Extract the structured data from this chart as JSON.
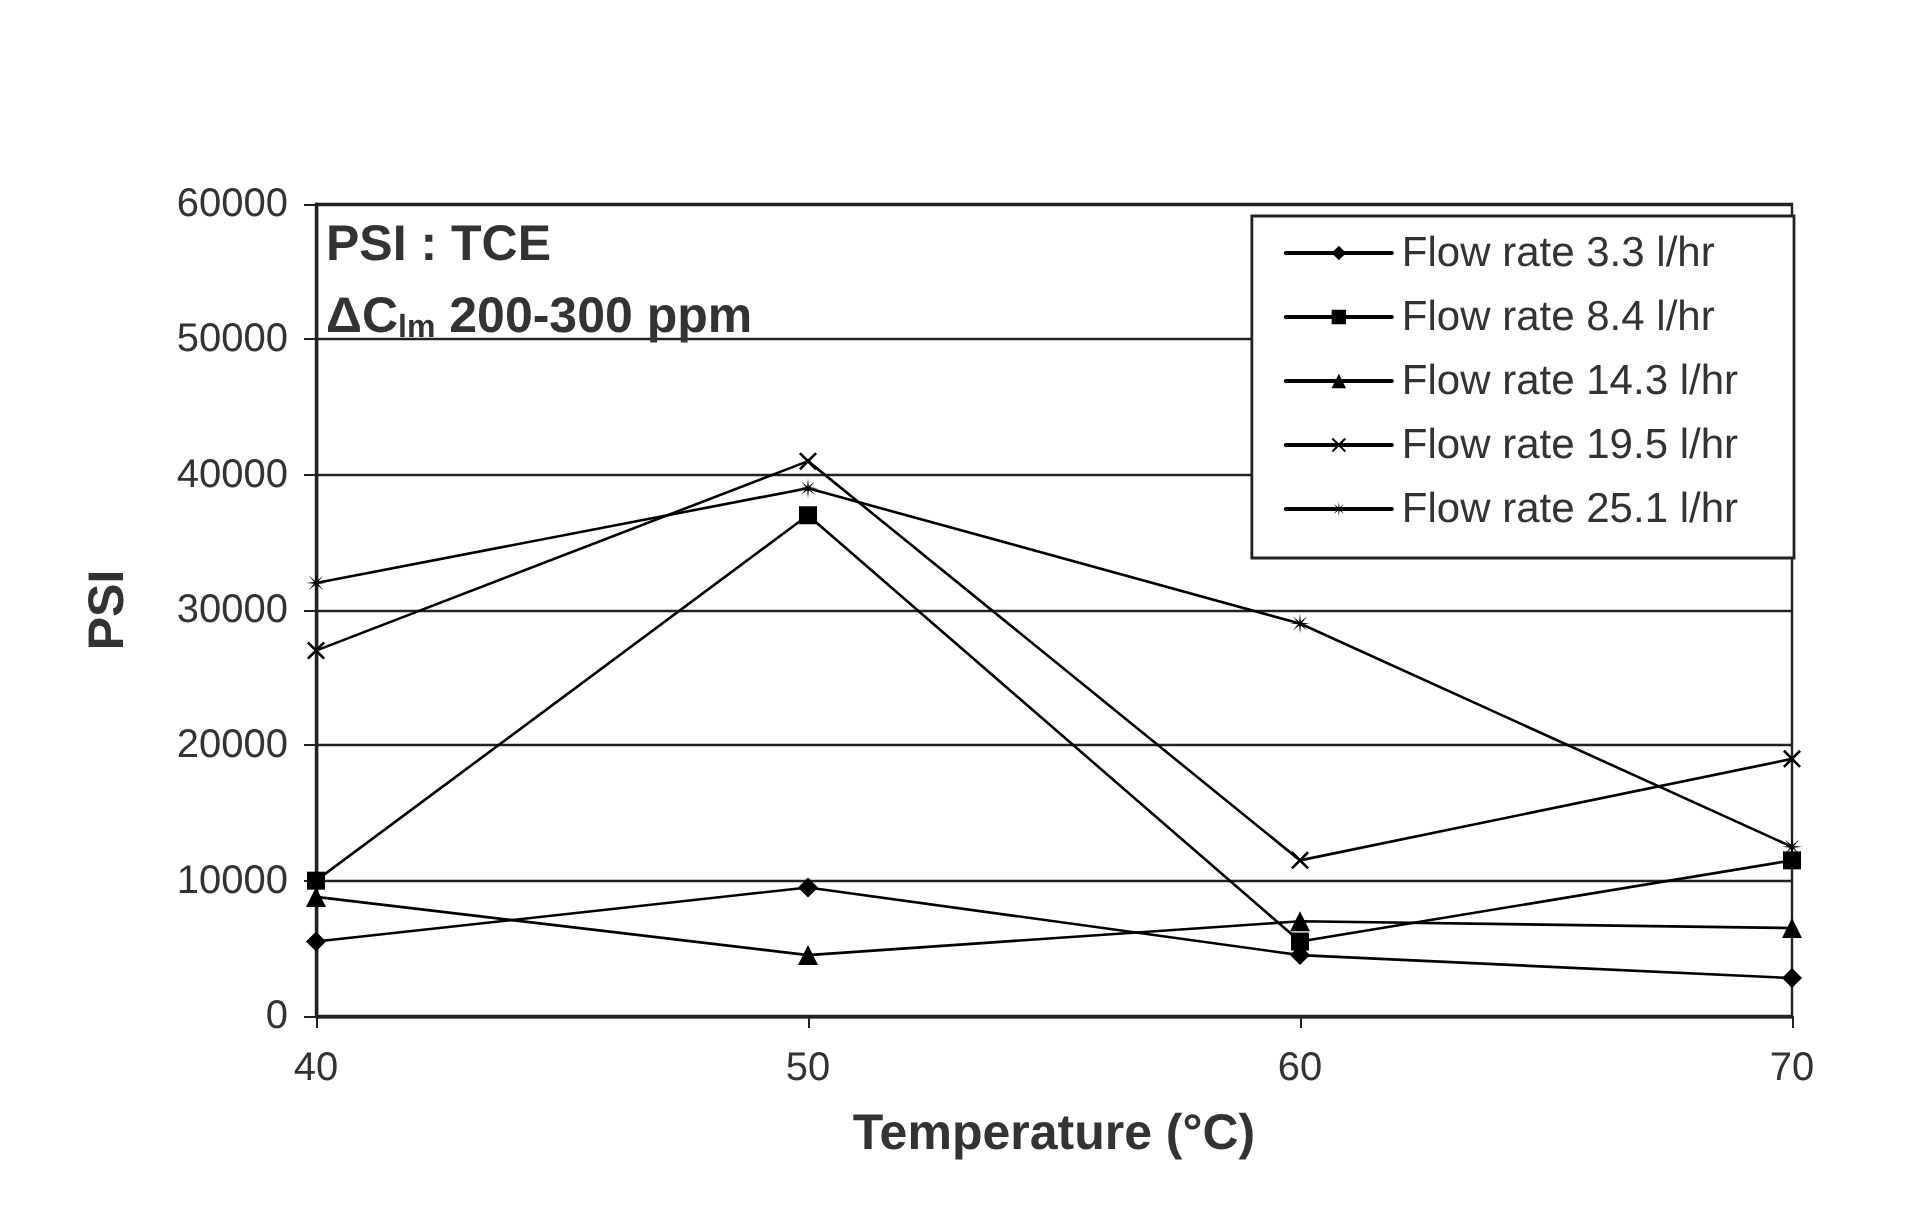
{
  "chart_data": {
    "type": "line",
    "xlabel": "Temperature (°C)",
    "ylabel": "PSI",
    "annotations": [
      "PSI : TCE",
      "ΔC$_{lm}$ 200-300 ppm"
    ],
    "x": [
      40,
      50,
      60,
      70
    ],
    "xlim": [
      40,
      70
    ],
    "xticks": [
      40,
      50,
      60,
      70
    ],
    "ylim": [
      0,
      60000
    ],
    "yticks": [
      0,
      10000,
      20000,
      30000,
      40000,
      50000,
      60000
    ],
    "grid": "y",
    "legend": "top right",
    "series": [
      {
        "name": "Flow rate 3.3 l/hr",
        "color": "#000000",
        "marker": "diamond",
        "values": [
          5500,
          9500,
          4500,
          2800
        ]
      },
      {
        "name": "Flow rate 8.4 l/hr",
        "color": "#000000",
        "marker": "square",
        "values": [
          10000,
          37000,
          5500,
          11500
        ]
      },
      {
        "name": "Flow rate 14.3 l/hr",
        "color": "#000000",
        "marker": "triangle",
        "values": [
          8800,
          4500,
          7000,
          6500
        ]
      },
      {
        "name": "Flow rate 19.5 l/hr",
        "color": "#000000",
        "marker": "cross",
        "values": [
          27000,
          41000,
          11500,
          19000
        ]
      },
      {
        "name": "Flow rate 25.1 l/hr",
        "color": "#000000",
        "marker": "star",
        "values": [
          32000,
          39000,
          29000,
          12500
        ]
      }
    ]
  }
}
